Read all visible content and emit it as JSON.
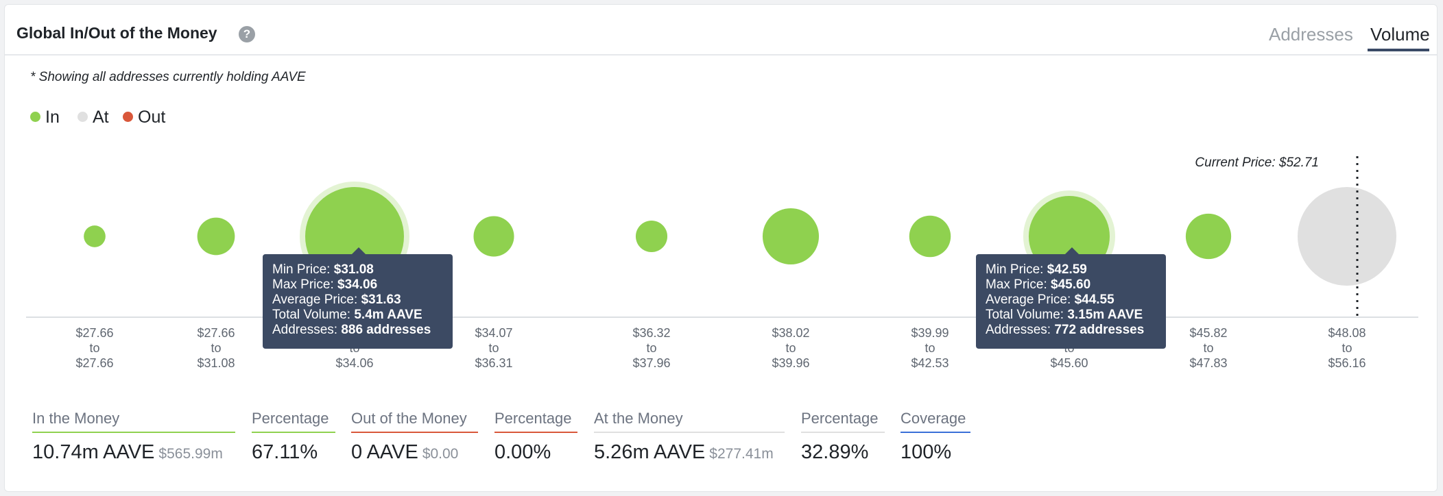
{
  "header": {
    "title": "Global In/Out of the Money",
    "tabs": [
      "Addresses",
      "Volume"
    ],
    "active_tab": "Volume"
  },
  "note": "* Showing all addresses currently holding AAVE",
  "legend": [
    {
      "label": "In",
      "color": "#8fd14f"
    },
    {
      "label": "At",
      "color": "#e0e0e0"
    },
    {
      "label": "Out",
      "color": "#d9573a"
    }
  ],
  "chart_data": {
    "type": "bubble",
    "annotation": "Current Price: $52.71",
    "buckets": [
      {
        "range": [
          "$27.66",
          "to",
          "$27.66"
        ],
        "volume_weight": 0.22,
        "status": "In"
      },
      {
        "range": [
          "$27.66",
          "to",
          "$31.08"
        ],
        "volume_weight": 0.38,
        "status": "In"
      },
      {
        "range": [
          "$31.08",
          "to",
          "$34.06"
        ],
        "volume_weight": 1.0,
        "status": "In",
        "highlighted": true
      },
      {
        "range": [
          "$34.07",
          "to",
          "$36.31"
        ],
        "volume_weight": 0.41,
        "status": "In"
      },
      {
        "range": [
          "$36.32",
          "to",
          "$37.96"
        ],
        "volume_weight": 0.32,
        "status": "In"
      },
      {
        "range": [
          "$38.02",
          "to",
          "$39.96"
        ],
        "volume_weight": 0.57,
        "status": "In"
      },
      {
        "range": [
          "$39.99",
          "to",
          "$42.53"
        ],
        "volume_weight": 0.42,
        "status": "In"
      },
      {
        "range": [
          "$42.59",
          "to",
          "$45.60"
        ],
        "volume_weight": 0.82,
        "status": "In",
        "highlighted": true
      },
      {
        "range": [
          "$45.82",
          "to",
          "$47.83"
        ],
        "volume_weight": 0.46,
        "status": "In"
      },
      {
        "range": [
          "$48.08",
          "to",
          "$56.16"
        ],
        "volume_weight": 1.0,
        "status": "At"
      }
    ],
    "tooltips": [
      {
        "min": "$31.08",
        "max": "$34.06",
        "avg": "$31.63",
        "volume": "5.4m AAVE",
        "addresses": "886 addresses"
      },
      {
        "min": "$42.59",
        "max": "$45.60",
        "avg": "$44.55",
        "volume": "3.15m AAVE",
        "addresses": "772 addresses"
      }
    ],
    "tooltip_labels": {
      "min": "Min Price:",
      "max": "Max Price:",
      "avg": "Average Price:",
      "volume": "Total Volume:",
      "addresses": "Addresses:"
    }
  },
  "stats": [
    {
      "label": "In the Money",
      "value": "10.74m AAVE",
      "sub": "$565.99m",
      "color": "#8fd14f"
    },
    {
      "label": "Percentage",
      "value": "67.11%",
      "sub": "",
      "color": "#8fd14f"
    },
    {
      "label": "Out of the Money",
      "value": "0 AAVE",
      "sub": "$0.00",
      "color": "#d9573a"
    },
    {
      "label": "Percentage",
      "value": "0.00%",
      "sub": "",
      "color": "#d9573a"
    },
    {
      "label": "At the Money",
      "value": "5.26m AAVE",
      "sub": "$277.41m",
      "color": "#e0e0e0"
    },
    {
      "label": "Percentage",
      "value": "32.89%",
      "sub": "",
      "color": "#e0e0e0"
    },
    {
      "label": "Coverage",
      "value": "100%",
      "sub": "",
      "color": "#3a6fd8"
    }
  ]
}
